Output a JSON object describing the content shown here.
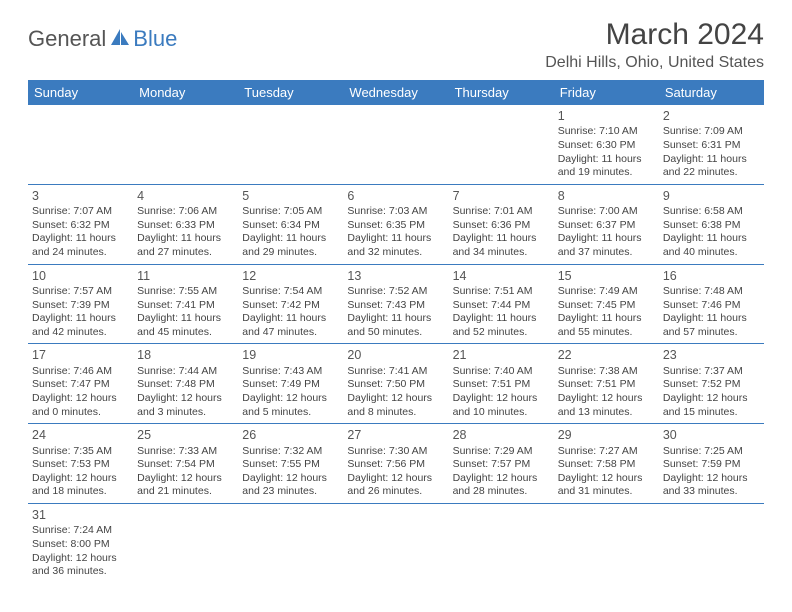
{
  "logo": {
    "text_general": "General",
    "text_blue": "Blue",
    "icon_color": "#3b7bbf"
  },
  "header": {
    "title": "March 2024",
    "location": "Delhi Hills, Ohio, United States"
  },
  "colors": {
    "header_bg": "#3b7bbf",
    "border": "#3b7bbf",
    "text": "#444444",
    "background": "#ffffff"
  },
  "calendar": {
    "days_of_week": [
      "Sunday",
      "Monday",
      "Tuesday",
      "Wednesday",
      "Thursday",
      "Friday",
      "Saturday"
    ],
    "weeks": [
      [
        null,
        null,
        null,
        null,
        null,
        {
          "num": "1",
          "sunrise": "Sunrise: 7:10 AM",
          "sunset": "Sunset: 6:30 PM",
          "daylight": "Daylight: 11 hours and 19 minutes."
        },
        {
          "num": "2",
          "sunrise": "Sunrise: 7:09 AM",
          "sunset": "Sunset: 6:31 PM",
          "daylight": "Daylight: 11 hours and 22 minutes."
        }
      ],
      [
        {
          "num": "3",
          "sunrise": "Sunrise: 7:07 AM",
          "sunset": "Sunset: 6:32 PM",
          "daylight": "Daylight: 11 hours and 24 minutes."
        },
        {
          "num": "4",
          "sunrise": "Sunrise: 7:06 AM",
          "sunset": "Sunset: 6:33 PM",
          "daylight": "Daylight: 11 hours and 27 minutes."
        },
        {
          "num": "5",
          "sunrise": "Sunrise: 7:05 AM",
          "sunset": "Sunset: 6:34 PM",
          "daylight": "Daylight: 11 hours and 29 minutes."
        },
        {
          "num": "6",
          "sunrise": "Sunrise: 7:03 AM",
          "sunset": "Sunset: 6:35 PM",
          "daylight": "Daylight: 11 hours and 32 minutes."
        },
        {
          "num": "7",
          "sunrise": "Sunrise: 7:01 AM",
          "sunset": "Sunset: 6:36 PM",
          "daylight": "Daylight: 11 hours and 34 minutes."
        },
        {
          "num": "8",
          "sunrise": "Sunrise: 7:00 AM",
          "sunset": "Sunset: 6:37 PM",
          "daylight": "Daylight: 11 hours and 37 minutes."
        },
        {
          "num": "9",
          "sunrise": "Sunrise: 6:58 AM",
          "sunset": "Sunset: 6:38 PM",
          "daylight": "Daylight: 11 hours and 40 minutes."
        }
      ],
      [
        {
          "num": "10",
          "sunrise": "Sunrise: 7:57 AM",
          "sunset": "Sunset: 7:39 PM",
          "daylight": "Daylight: 11 hours and 42 minutes."
        },
        {
          "num": "11",
          "sunrise": "Sunrise: 7:55 AM",
          "sunset": "Sunset: 7:41 PM",
          "daylight": "Daylight: 11 hours and 45 minutes."
        },
        {
          "num": "12",
          "sunrise": "Sunrise: 7:54 AM",
          "sunset": "Sunset: 7:42 PM",
          "daylight": "Daylight: 11 hours and 47 minutes."
        },
        {
          "num": "13",
          "sunrise": "Sunrise: 7:52 AM",
          "sunset": "Sunset: 7:43 PM",
          "daylight": "Daylight: 11 hours and 50 minutes."
        },
        {
          "num": "14",
          "sunrise": "Sunrise: 7:51 AM",
          "sunset": "Sunset: 7:44 PM",
          "daylight": "Daylight: 11 hours and 52 minutes."
        },
        {
          "num": "15",
          "sunrise": "Sunrise: 7:49 AM",
          "sunset": "Sunset: 7:45 PM",
          "daylight": "Daylight: 11 hours and 55 minutes."
        },
        {
          "num": "16",
          "sunrise": "Sunrise: 7:48 AM",
          "sunset": "Sunset: 7:46 PM",
          "daylight": "Daylight: 11 hours and 57 minutes."
        }
      ],
      [
        {
          "num": "17",
          "sunrise": "Sunrise: 7:46 AM",
          "sunset": "Sunset: 7:47 PM",
          "daylight": "Daylight: 12 hours and 0 minutes."
        },
        {
          "num": "18",
          "sunrise": "Sunrise: 7:44 AM",
          "sunset": "Sunset: 7:48 PM",
          "daylight": "Daylight: 12 hours and 3 minutes."
        },
        {
          "num": "19",
          "sunrise": "Sunrise: 7:43 AM",
          "sunset": "Sunset: 7:49 PM",
          "daylight": "Daylight: 12 hours and 5 minutes."
        },
        {
          "num": "20",
          "sunrise": "Sunrise: 7:41 AM",
          "sunset": "Sunset: 7:50 PM",
          "daylight": "Daylight: 12 hours and 8 minutes."
        },
        {
          "num": "21",
          "sunrise": "Sunrise: 7:40 AM",
          "sunset": "Sunset: 7:51 PM",
          "daylight": "Daylight: 12 hours and 10 minutes."
        },
        {
          "num": "22",
          "sunrise": "Sunrise: 7:38 AM",
          "sunset": "Sunset: 7:51 PM",
          "daylight": "Daylight: 12 hours and 13 minutes."
        },
        {
          "num": "23",
          "sunrise": "Sunrise: 7:37 AM",
          "sunset": "Sunset: 7:52 PM",
          "daylight": "Daylight: 12 hours and 15 minutes."
        }
      ],
      [
        {
          "num": "24",
          "sunrise": "Sunrise: 7:35 AM",
          "sunset": "Sunset: 7:53 PM",
          "daylight": "Daylight: 12 hours and 18 minutes."
        },
        {
          "num": "25",
          "sunrise": "Sunrise: 7:33 AM",
          "sunset": "Sunset: 7:54 PM",
          "daylight": "Daylight: 12 hours and 21 minutes."
        },
        {
          "num": "26",
          "sunrise": "Sunrise: 7:32 AM",
          "sunset": "Sunset: 7:55 PM",
          "daylight": "Daylight: 12 hours and 23 minutes."
        },
        {
          "num": "27",
          "sunrise": "Sunrise: 7:30 AM",
          "sunset": "Sunset: 7:56 PM",
          "daylight": "Daylight: 12 hours and 26 minutes."
        },
        {
          "num": "28",
          "sunrise": "Sunrise: 7:29 AM",
          "sunset": "Sunset: 7:57 PM",
          "daylight": "Daylight: 12 hours and 28 minutes."
        },
        {
          "num": "29",
          "sunrise": "Sunrise: 7:27 AM",
          "sunset": "Sunset: 7:58 PM",
          "daylight": "Daylight: 12 hours and 31 minutes."
        },
        {
          "num": "30",
          "sunrise": "Sunrise: 7:25 AM",
          "sunset": "Sunset: 7:59 PM",
          "daylight": "Daylight: 12 hours and 33 minutes."
        }
      ],
      [
        {
          "num": "31",
          "sunrise": "Sunrise: 7:24 AM",
          "sunset": "Sunset: 8:00 PM",
          "daylight": "Daylight: 12 hours and 36 minutes."
        },
        null,
        null,
        null,
        null,
        null,
        null
      ]
    ]
  }
}
